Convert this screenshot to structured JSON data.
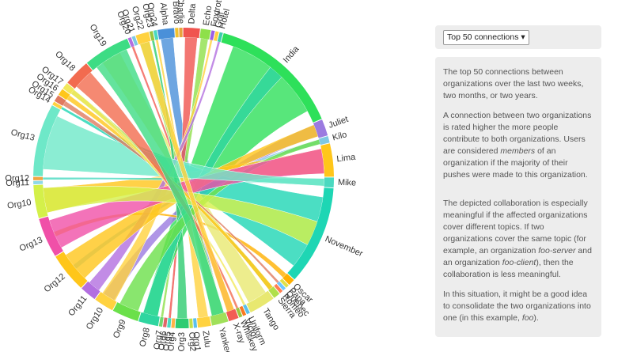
{
  "diagram": {
    "groups": [
      {
        "label": "Alpha",
        "color": "#4a90d9",
        "size": 5
      },
      {
        "label": "Bravo",
        "color": "#f2c12e",
        "size": 1
      },
      {
        "label": "Charlie",
        "color": "#e8a33c",
        "size": 1
      },
      {
        "label": "Delta",
        "color": "#f0544f",
        "size": 5
      },
      {
        "label": "Echo",
        "color": "#8ee04a",
        "size": 3
      },
      {
        "label": "Foxtrot",
        "color": "#9b5de5",
        "size": 1
      },
      {
        "label": "Golf",
        "color": "#ffd23f",
        "size": 1
      },
      {
        "label": "Hotel",
        "color": "#3bceac",
        "size": 1
      },
      {
        "label": "India",
        "color": "#2ee05a",
        "size": 40
      },
      {
        "label": "Juliet",
        "color": "#9b7be0",
        "size": 5
      },
      {
        "label": "Kilo",
        "color": "#7ec8e3",
        "size": 2
      },
      {
        "label": "Lima",
        "color": "#ffc61a",
        "size": 10
      },
      {
        "label": "Mike",
        "color": "#4ad9c0",
        "size": 3
      },
      {
        "label": "November",
        "color": "#1ed6b4",
        "size": 30
      },
      {
        "label": "Oscar",
        "color": "#ffb000",
        "size": 2
      },
      {
        "label": "Papa",
        "color": "#e0e04a",
        "size": 1
      },
      {
        "label": "Quebec",
        "color": "#6ec6ff",
        "size": 1
      },
      {
        "label": "Romeo",
        "color": "#ff7f50",
        "size": 1
      },
      {
        "label": "Sierra",
        "color": "#b0e04a",
        "size": 2
      },
      {
        "label": "Tango",
        "color": "#e8e870",
        "size": 8
      },
      {
        "label": "Uniform",
        "color": "#5bc0eb",
        "size": 1
      },
      {
        "label": "Victor",
        "color": "#fa7921",
        "size": 1
      },
      {
        "label": "Whiskey",
        "color": "#9bc53d",
        "size": 1
      },
      {
        "label": "X-ray",
        "color": "#f25c54",
        "size": 3
      },
      {
        "label": "Yankee",
        "color": "#a0e05a",
        "size": 5
      },
      {
        "label": "Zulu",
        "color": "#ffd23f",
        "size": 4
      },
      {
        "label": "Org1",
        "color": "#5bc0eb",
        "size": 1
      },
      {
        "label": "Org2",
        "color": "#c3e04a",
        "size": 1
      },
      {
        "label": "Org3",
        "color": "#2ecc71",
        "size": 4
      },
      {
        "label": "Org4",
        "color": "#ffb347",
        "size": 1
      },
      {
        "label": "Org5",
        "color": "#4ad9c0",
        "size": 1
      },
      {
        "label": "Org6",
        "color": "#e06666",
        "size": 1
      },
      {
        "label": "Org7",
        "color": "#6fd96f",
        "size": 1
      },
      {
        "label": "Org8",
        "color": "#2ed6a0",
        "size": 6
      },
      {
        "label": "Org9",
        "color": "#6be04a",
        "size": 8
      },
      {
        "label": "Org10",
        "color": "#ffd23f",
        "size": 6
      },
      {
        "label": "Org11",
        "color": "#b36fe0",
        "size": 5
      },
      {
        "label": "Org12",
        "color": "#ffc61a",
        "size": 12
      },
      {
        "label": "Org13",
        "color": "#f050a8",
        "size": 12
      },
      {
        "label": "Org10",
        "color": "#d4f04a",
        "size": 10
      },
      {
        "label": "Org11",
        "color": "#8fd9e8",
        "size": 1
      },
      {
        "label": "Org12",
        "color": "#f2a541",
        "size": 1
      },
      {
        "label": "Org13",
        "color": "#6ee8c8",
        "size": 22
      },
      {
        "label": "Org14",
        "color": "#ffd23f",
        "size": 1
      },
      {
        "label": "Org15",
        "color": "#e07a5f",
        "size": 2
      },
      {
        "label": "Org16",
        "color": "#ffc61a",
        "size": 2
      },
      {
        "label": "Org17",
        "color": "#f2e85a",
        "size": 2
      },
      {
        "label": "Org18",
        "color": "#f26b4f",
        "size": 8
      },
      {
        "label": "Org19",
        "color": "#3ddc84",
        "size": 14
      },
      {
        "label": "Org20",
        "color": "#b36fe0",
        "size": 1
      },
      {
        "label": "Org21",
        "color": "#7ec8e3",
        "size": 1
      },
      {
        "label": "Org22",
        "color": "#ffd23f",
        "size": 4
      },
      {
        "label": "Org23",
        "color": "#9bc53d",
        "size": 1
      },
      {
        "label": "Org24",
        "color": "#4ad9c0",
        "size": 1
      }
    ]
  },
  "sidebar": {
    "dropdown": "Top 50 connections ▾",
    "panel1": [
      [
        {
          "text": "The top 50 connections between organizations over the last two weeks, two months, or two years.",
          "italic": false
        }
      ],
      [
        {
          "text": "A connection between two organizations is rated higher the more people contribute to both organizations. Users are considered ",
          "italic": false
        },
        {
          "text": "members",
          "italic": true
        },
        {
          "text": " of an organization if the majority of their pushes were made to this organization.",
          "italic": false
        }
      ]
    ],
    "panel2": [
      [
        {
          "text": "The depicted collaboration is especially meaningful if the affected organizations cover different topics. If two organizations cover the same topic (for example, an organization ",
          "italic": false
        },
        {
          "text": "foo-server",
          "italic": true
        },
        {
          "text": " and an organization ",
          "italic": false
        },
        {
          "text": "foo-client",
          "italic": true
        },
        {
          "text": "), then the collaboration is less meaningful.",
          "italic": false
        }
      ],
      [
        {
          "text": "In this situation, it might be a good idea to consolidate the two organizations into one (in this example, ",
          "italic": false
        },
        {
          "text": "foo",
          "italic": true
        },
        {
          "text": ").",
          "italic": false
        }
      ]
    ]
  }
}
